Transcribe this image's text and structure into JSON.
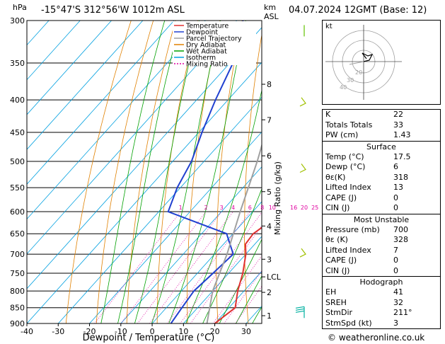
{
  "header": {
    "pressure_unit": "hPa",
    "location": "-15°47'S  312°56'W  1012m  ASL",
    "height_unit": "km",
    "height_unit2": "ASL",
    "datetime": "04.07.2024  12GMT  (Base: 12)"
  },
  "chart_data": {
    "type": "line",
    "title": "",
    "xlabel": "Dewpoint / Temperature (°C)",
    "ylabel": "hPa",
    "right_label": "Mixing Ratio (g/kg)",
    "xlim": [
      -40,
      35
    ],
    "ylim": [
      900,
      300
    ],
    "y_log_scale": true,
    "x_ticks": [
      "-40",
      "-30",
      "-20",
      "-10",
      "0",
      "10",
      "20",
      "30"
    ],
    "pressure_levels": [
      300,
      350,
      400,
      450,
      500,
      550,
      600,
      650,
      700,
      750,
      800,
      850,
      900
    ],
    "legend_placement": "top-left",
    "legend": [
      "Temperature",
      "Dewpoint",
      "Parcel Trajectory",
      "Dry Adiabat",
      "Wet Adiabat",
      "Isotherm",
      "Mixing Ratio"
    ],
    "colors": {
      "temperature": "#e03030",
      "dewpoint": "#2040d0",
      "parcel": "#a0a0a0",
      "dry_adiabat": "#e08000",
      "wet_adiabat": "#00a000",
      "isotherm": "#00a0e0",
      "mixing_ratio": "#e000a0"
    },
    "series": [
      {
        "name": "Temperature",
        "points": [
          [
            900,
            20
          ],
          [
            850,
            22
          ],
          [
            800,
            18
          ],
          [
            750,
            14.5
          ],
          [
            700,
            10
          ],
          [
            675,
            7
          ],
          [
            650,
            6.5
          ],
          [
            600,
            10
          ],
          [
            550,
            13
          ],
          [
            500,
            9
          ],
          [
            450,
            4
          ],
          [
            400,
            -4
          ],
          [
            350,
            -13
          ],
          [
            300,
            -24
          ]
        ]
      },
      {
        "name": "Dewpoint",
        "points": [
          [
            900,
            6
          ],
          [
            850,
            5
          ],
          [
            800,
            4
          ],
          [
            750,
            5
          ],
          [
            700,
            6
          ],
          [
            650,
            -2
          ],
          [
            600,
            -27
          ],
          [
            550,
            -31
          ],
          [
            500,
            -34
          ],
          [
            450,
            -39
          ],
          [
            400,
            -44
          ],
          [
            350,
            -49
          ],
          [
            300,
            -58
          ]
        ]
      },
      {
        "name": "Parcel Trajectory",
        "points": [
          [
            900,
            17.5
          ],
          [
            800,
            10
          ],
          [
            700,
            4
          ],
          [
            600,
            -4
          ],
          [
            500,
            -13
          ],
          [
            400,
            -25
          ],
          [
            300,
            -42
          ]
        ]
      }
    ],
    "mixing_ratio_values": [
      "1",
      "2",
      "3",
      "4",
      "6",
      "8",
      "10",
      "16",
      "20",
      "25"
    ],
    "mixing_ratio_numbers": [
      1,
      2,
      3,
      4,
      6,
      8,
      10,
      16,
      20,
      25
    ],
    "km_ticks": [
      {
        "label": "8",
        "p": 378
      },
      {
        "label": "7",
        "p": 430
      },
      {
        "label": "6",
        "p": 490
      },
      {
        "label": "5",
        "p": 558
      },
      {
        "label": "4",
        "p": 632
      },
      {
        "label": "3",
        "p": 713
      },
      {
        "label": "LCL",
        "p": 760
      },
      {
        "label": "2",
        "p": 804
      },
      {
        "label": "1",
        "p": 875
      }
    ],
    "wind_barbs": [
      {
        "p": 305,
        "dir": "calm"
      },
      {
        "p": 405,
        "dir": "light"
      },
      {
        "p": 515,
        "dir": "light"
      },
      {
        "p": 700,
        "dir": "light"
      },
      {
        "p": 860,
        "dir": "low"
      }
    ]
  },
  "hodograph": {
    "label": "kt",
    "ring_labels": [
      "40",
      "30",
      "20"
    ]
  },
  "indices": {
    "top": [
      {
        "label": "K",
        "value": "22"
      },
      {
        "label": "Totals Totals",
        "value": "33"
      },
      {
        "label": "PW (cm)",
        "value": "1.43"
      }
    ],
    "surface": {
      "title": "Surface",
      "rows": [
        {
          "label": "Temp (°C)",
          "value": "17.5"
        },
        {
          "label": "Dewp (°C)",
          "value": "6"
        },
        {
          "label": "θε(K)",
          "value": "318"
        },
        {
          "label": "Lifted Index",
          "value": "13"
        },
        {
          "label": "CAPE (J)",
          "value": "0"
        },
        {
          "label": "CIN (J)",
          "value": "0"
        }
      ]
    },
    "most_unstable": {
      "title": "Most Unstable",
      "rows": [
        {
          "label": "Pressure (mb)",
          "value": "700"
        },
        {
          "label": "θε (K)",
          "value": "328"
        },
        {
          "label": "Lifted Index",
          "value": "7"
        },
        {
          "label": "CAPE (J)",
          "value": "0"
        },
        {
          "label": "CIN (J)",
          "value": "0"
        }
      ]
    },
    "hodograph": {
      "title": "Hodograph",
      "rows": [
        {
          "label": "EH",
          "value": "41"
        },
        {
          "label": "SREH",
          "value": "32"
        },
        {
          "label": "StmDir",
          "value": "211°"
        },
        {
          "label": "StmSpd (kt)",
          "value": "3"
        }
      ]
    }
  },
  "footer": {
    "copyright": "© weatheronline.co.uk"
  }
}
